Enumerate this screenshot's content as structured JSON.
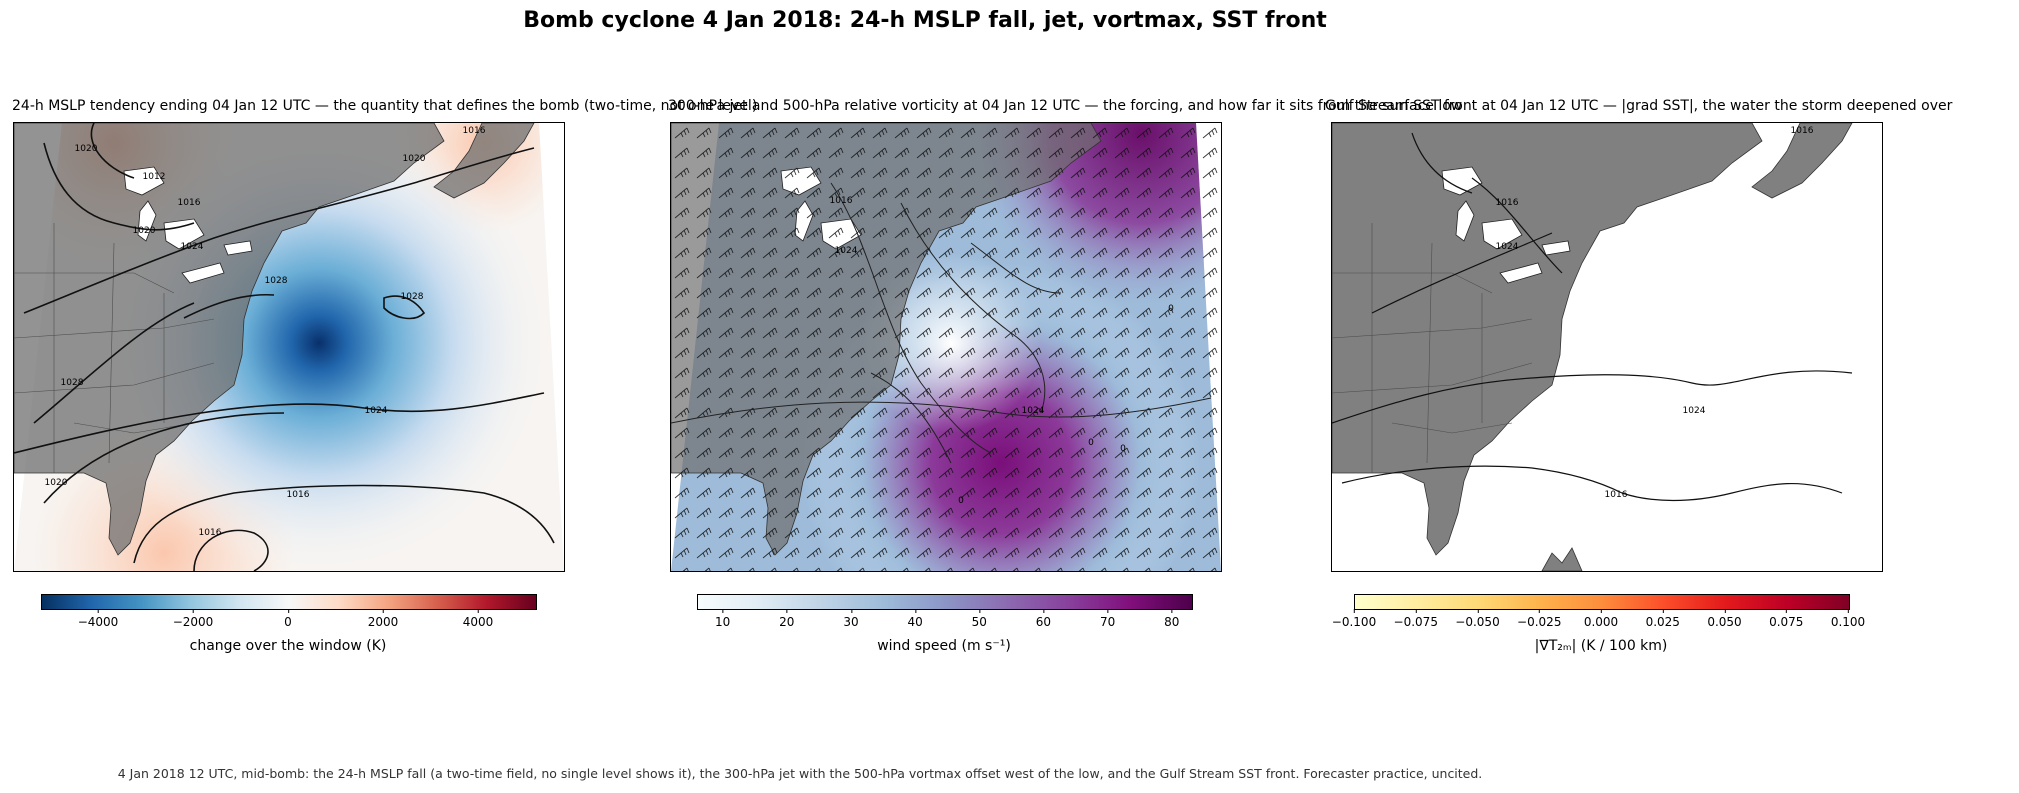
{
  "figure": {
    "title": "Bomb cyclone 4 Jan 2018: 24-h MSLP fall, jet, vortmax, SST front",
    "footnote": "4 Jan 2018 12 UTC, mid-bomb: the 24-h MSLP fall (a two-time field, no single level shows it), the 300-hPa jet with the 500-hPa vortmax offset west of the low, and the Gulf Stream SST front. Forecaster practice, uncited."
  },
  "colors": {
    "land": "#808080",
    "border": "#555555",
    "contour": "#111111",
    "fall_core": "#08306b",
    "rise": "#f4a582",
    "jet_core": "#7a0f7a",
    "jet_edge": "#c6dbef"
  },
  "panels": [
    {
      "title": "24-h MSLP tendency ending 04 Jan 12 UTC — the quantity that defines the bomb (two-time, not one level)",
      "colorbar": {
        "colormap": "RdBu_r",
        "label": "change over the window (K)",
        "ticks": [
          "−4000",
          "−2000",
          "0",
          "2000",
          "4000"
        ],
        "range": [
          -5200,
          5200
        ],
        "tick_values": [
          -4000,
          -2000,
          0,
          2000,
          4000
        ]
      },
      "contour_labels": [
        "1016",
        "1020",
        "1012",
        "1016",
        "1020",
        "1024",
        "1028",
        "1028",
        "1028",
        "1024",
        "1020",
        "1016",
        "1016",
        "1020"
      ]
    },
    {
      "title": "300-hPa jet and 500-hPa relative vorticity at 04 Jan 12 UTC — the forcing, and how far it sits from the surface low",
      "colorbar": {
        "colormap": "BuPu",
        "label": "wind speed (m s⁻¹)",
        "ticks": [
          "10",
          "20",
          "30",
          "40",
          "50",
          "60",
          "70",
          "80"
        ],
        "range": [
          6,
          83
        ],
        "tick_values": [
          10,
          20,
          30,
          40,
          50,
          60,
          70,
          80
        ]
      },
      "contour_labels": [
        "1016",
        "1024",
        "0",
        "0",
        "0",
        "1024",
        "0"
      ]
    },
    {
      "title": "Gulf Stream SST front at 04 Jan 12 UTC — |grad SST|, the water the storm deepened over",
      "colorbar": {
        "colormap": "YlOrRd",
        "label": "|∇T₂ₘ| (K / 100 km)",
        "ticks": [
          "−0.100",
          "−0.075",
          "−0.050",
          "−0.025",
          "0.000",
          "0.025",
          "0.050",
          "0.075",
          "0.100"
        ],
        "range": [
          -0.1,
          0.1
        ],
        "tick_values": [
          -0.1,
          -0.075,
          -0.05,
          -0.025,
          0,
          0.025,
          0.05,
          0.075,
          0.1
        ]
      },
      "contour_labels": [
        "1016",
        "1016",
        "1024",
        "1024",
        "1016"
      ]
    }
  ]
}
